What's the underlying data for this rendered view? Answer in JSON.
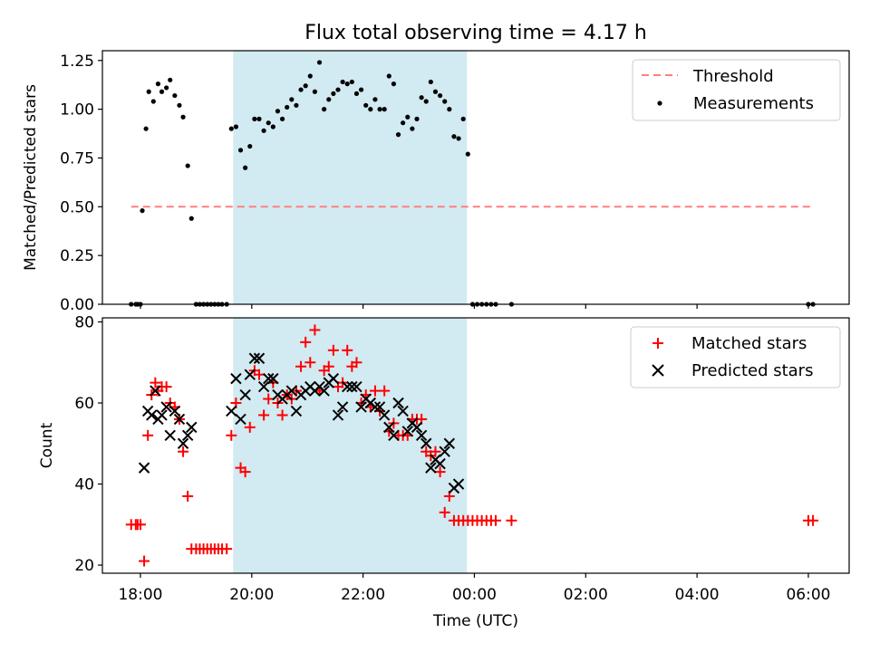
{
  "figure": {
    "title": "Flux total observing time = 4.17 h",
    "xlabel": "Time (UTC)"
  },
  "chart_data": [
    {
      "type": "scatter",
      "panel": "top",
      "ylabel": "Matched/Predicted stars",
      "xlim": [
        "17:19",
        "06:44"
      ],
      "ylim": [
        0,
        1.3
      ],
      "yticks": [
        0.0,
        0.25,
        0.5,
        0.75,
        1.0,
        1.25
      ],
      "ytick_labels": [
        "0.00",
        "0.25",
        "0.50",
        "0.75",
        "1.00",
        "1.25"
      ],
      "grid": false,
      "legend_position": "top-right",
      "shaded_region": {
        "x": [
          "19:40",
          "23:52"
        ],
        "color": "#add8e6"
      },
      "threshold": {
        "name": "Threshold",
        "y": 0.5,
        "x": [
          "17:50",
          "06:05"
        ],
        "color": "#ff7f7f",
        "style": "dashed"
      },
      "series": [
        {
          "name": "Measurements",
          "color": "#000000",
          "marker": "dot",
          "points": [
            [
              "17:50",
              0.0
            ],
            [
              "17:55",
              0.0
            ],
            [
              "17:57",
              0.0
            ],
            [
              "18:00",
              0.0
            ],
            [
              "18:02",
              0.48
            ],
            [
              "18:06",
              0.9
            ],
            [
              "18:09",
              1.09
            ],
            [
              "18:14",
              1.04
            ],
            [
              "18:19",
              1.13
            ],
            [
              "18:23",
              1.09
            ],
            [
              "18:28",
              1.11
            ],
            [
              "18:32",
              1.15
            ],
            [
              "18:37",
              1.07
            ],
            [
              "18:42",
              1.02
            ],
            [
              "18:46",
              0.96
            ],
            [
              "18:51",
              0.71
            ],
            [
              "18:55",
              0.44
            ],
            [
              "19:00",
              0.0
            ],
            [
              "19:04",
              0.0
            ],
            [
              "19:08",
              0.0
            ],
            [
              "19:12",
              0.0
            ],
            [
              "19:16",
              0.0
            ],
            [
              "19:20",
              0.0
            ],
            [
              "19:24",
              0.0
            ],
            [
              "19:28",
              0.0
            ],
            [
              "19:33",
              0.0
            ],
            [
              "19:38",
              0.9
            ],
            [
              "19:43",
              0.91
            ],
            [
              "19:48",
              0.79
            ],
            [
              "19:53",
              0.7
            ],
            [
              "19:58",
              0.81
            ],
            [
              "20:03",
              0.95
            ],
            [
              "20:08",
              0.95
            ],
            [
              "20:13",
              0.89
            ],
            [
              "20:18",
              0.93
            ],
            [
              "20:23",
              0.91
            ],
            [
              "20:28",
              0.99
            ],
            [
              "20:33",
              0.95
            ],
            [
              "20:38",
              1.01
            ],
            [
              "20:43",
              1.05
            ],
            [
              "20:48",
              1.02
            ],
            [
              "20:53",
              1.1
            ],
            [
              "20:58",
              1.12
            ],
            [
              "21:03",
              1.17
            ],
            [
              "21:08",
              1.09
            ],
            [
              "21:13",
              1.24
            ],
            [
              "21:18",
              1.0
            ],
            [
              "21:23",
              1.05
            ],
            [
              "21:28",
              1.08
            ],
            [
              "21:33",
              1.1
            ],
            [
              "21:38",
              1.14
            ],
            [
              "21:43",
              1.13
            ],
            [
              "21:48",
              1.14
            ],
            [
              "21:53",
              1.08
            ],
            [
              "21:58",
              1.1
            ],
            [
              "22:03",
              1.02
            ],
            [
              "22:08",
              1.0
            ],
            [
              "22:13",
              1.05
            ],
            [
              "22:18",
              1.0
            ],
            [
              "22:23",
              1.0
            ],
            [
              "22:28",
              1.17
            ],
            [
              "22:33",
              1.13
            ],
            [
              "22:38",
              0.87
            ],
            [
              "22:43",
              0.93
            ],
            [
              "22:48",
              0.96
            ],
            [
              "22:53",
              0.9
            ],
            [
              "22:58",
              0.95
            ],
            [
              "23:03",
              1.06
            ],
            [
              "23:08",
              1.04
            ],
            [
              "23:13",
              1.14
            ],
            [
              "23:18",
              1.09
            ],
            [
              "23:23",
              1.07
            ],
            [
              "23:28",
              1.04
            ],
            [
              "23:33",
              1.0
            ],
            [
              "23:38",
              0.86
            ],
            [
              "23:43",
              0.85
            ],
            [
              "23:48",
              0.95
            ],
            [
              "23:53",
              0.77
            ],
            [
              "23:58",
              0.0
            ],
            [
              "00:03",
              0.0
            ],
            [
              "00:08",
              0.0
            ],
            [
              "00:13",
              0.0
            ],
            [
              "00:18",
              0.0
            ],
            [
              "00:23",
              0.0
            ],
            [
              "00:40",
              0.0
            ],
            [
              "06:00",
              0.0
            ],
            [
              "06:05",
              0.0
            ]
          ]
        }
      ]
    },
    {
      "type": "scatter",
      "panel": "bottom",
      "ylabel": "Count",
      "xlabel": "Time (UTC)",
      "xlim": [
        "17:19",
        "06:44"
      ],
      "ylim": [
        18,
        81
      ],
      "yticks": [
        20,
        40,
        60,
        80
      ],
      "ytick_labels": [
        "20",
        "40",
        "60",
        "80"
      ],
      "xticks": [
        "18:00",
        "20:00",
        "22:00",
        "00:00",
        "02:00",
        "04:00",
        "06:00"
      ],
      "grid": false,
      "legend_position": "top-right",
      "shaded_region": {
        "x": [
          "19:40",
          "23:52"
        ],
        "color": "#add8e6"
      },
      "series": [
        {
          "name": "Matched stars",
          "color": "#ff0000",
          "marker": "plus",
          "points": [
            [
              "17:50",
              30
            ],
            [
              "17:55",
              30
            ],
            [
              "17:57",
              30
            ],
            [
              "18:00",
              30
            ],
            [
              "18:04",
              21
            ],
            [
              "18:08",
              52
            ],
            [
              "18:12",
              62
            ],
            [
              "18:16",
              65
            ],
            [
              "18:19",
              63
            ],
            [
              "18:23",
              64
            ],
            [
              "18:28",
              64
            ],
            [
              "18:32",
              60
            ],
            [
              "18:37",
              59
            ],
            [
              "18:42",
              56
            ],
            [
              "18:46",
              48
            ],
            [
              "18:51",
              37
            ],
            [
              "18:55",
              24
            ],
            [
              "19:00",
              24
            ],
            [
              "19:04",
              24
            ],
            [
              "19:08",
              24
            ],
            [
              "19:12",
              24
            ],
            [
              "19:16",
              24
            ],
            [
              "19:20",
              24
            ],
            [
              "19:24",
              24
            ],
            [
              "19:28",
              24
            ],
            [
              "19:33",
              24
            ],
            [
              "19:38",
              52
            ],
            [
              "19:43",
              60
            ],
            [
              "19:48",
              44
            ],
            [
              "19:53",
              43
            ],
            [
              "19:58",
              54
            ],
            [
              "20:03",
              68
            ],
            [
              "20:08",
              67
            ],
            [
              "20:13",
              57
            ],
            [
              "20:18",
              61
            ],
            [
              "20:23",
              65
            ],
            [
              "20:28",
              60
            ],
            [
              "20:33",
              57
            ],
            [
              "20:38",
              62
            ],
            [
              "20:43",
              61
            ],
            [
              "20:48",
              63
            ],
            [
              "20:53",
              69
            ],
            [
              "20:58",
              75
            ],
            [
              "21:03",
              70
            ],
            [
              "21:08",
              78
            ],
            [
              "21:13",
              63
            ],
            [
              "21:18",
              68
            ],
            [
              "21:23",
              69
            ],
            [
              "21:28",
              73
            ],
            [
              "21:33",
              64
            ],
            [
              "21:38",
              65
            ],
            [
              "21:43",
              73
            ],
            [
              "21:48",
              69
            ],
            [
              "21:53",
              70
            ],
            [
              "21:58",
              60
            ],
            [
              "22:03",
              62
            ],
            [
              "22:08",
              59
            ],
            [
              "22:13",
              63
            ],
            [
              "22:18",
              58
            ],
            [
              "22:23",
              63
            ],
            [
              "22:28",
              53
            ],
            [
              "22:33",
              55
            ],
            [
              "22:38",
              52
            ],
            [
              "22:43",
              52
            ],
            [
              "22:48",
              52
            ],
            [
              "22:53",
              56
            ],
            [
              "22:58",
              56
            ],
            [
              "23:03",
              56
            ],
            [
              "23:08",
              48
            ],
            [
              "23:13",
              47
            ],
            [
              "23:18",
              48
            ],
            [
              "23:23",
              43
            ],
            [
              "23:28",
              33
            ],
            [
              "23:33",
              37
            ],
            [
              "23:38",
              31
            ],
            [
              "23:43",
              31
            ],
            [
              "23:48",
              31
            ],
            [
              "23:53",
              31
            ],
            [
              "23:58",
              31
            ],
            [
              "00:03",
              31
            ],
            [
              "00:08",
              31
            ],
            [
              "00:13",
              31
            ],
            [
              "00:18",
              31
            ],
            [
              "00:23",
              31
            ],
            [
              "00:40",
              31
            ],
            [
              "06:00",
              31
            ],
            [
              "06:05",
              31
            ]
          ]
        },
        {
          "name": "Predicted stars",
          "color": "#000000",
          "marker": "x",
          "points": [
            [
              "18:04",
              44
            ],
            [
              "18:08",
              58
            ],
            [
              "18:12",
              57
            ],
            [
              "18:16",
              63
            ],
            [
              "18:19",
              56
            ],
            [
              "18:23",
              57
            ],
            [
              "18:28",
              59
            ],
            [
              "18:32",
              52
            ],
            [
              "18:37",
              58
            ],
            [
              "18:42",
              56
            ],
            [
              "18:46",
              50
            ],
            [
              "18:51",
              52
            ],
            [
              "18:55",
              54
            ],
            [
              "19:38",
              58
            ],
            [
              "19:43",
              66
            ],
            [
              "19:48",
              56
            ],
            [
              "19:53",
              62
            ],
            [
              "19:58",
              67
            ],
            [
              "20:03",
              71
            ],
            [
              "20:08",
              71
            ],
            [
              "20:13",
              64
            ],
            [
              "20:18",
              66
            ],
            [
              "20:23",
              66
            ],
            [
              "20:28",
              62
            ],
            [
              "20:33",
              61
            ],
            [
              "20:38",
              62
            ],
            [
              "20:43",
              63
            ],
            [
              "20:48",
              58
            ],
            [
              "20:53",
              62
            ],
            [
              "20:58",
              63
            ],
            [
              "21:03",
              64
            ],
            [
              "21:08",
              63
            ],
            [
              "21:13",
              64
            ],
            [
              "21:18",
              63
            ],
            [
              "21:23",
              65
            ],
            [
              "21:28",
              66
            ],
            [
              "21:33",
              57
            ],
            [
              "21:38",
              59
            ],
            [
              "21:43",
              64
            ],
            [
              "21:48",
              64
            ],
            [
              "21:53",
              64
            ],
            [
              "21:58",
              59
            ],
            [
              "22:03",
              61
            ],
            [
              "22:08",
              60
            ],
            [
              "22:13",
              59
            ],
            [
              "22:18",
              59
            ],
            [
              "22:23",
              57
            ],
            [
              "22:28",
              54
            ],
            [
              "22:33",
              52
            ],
            [
              "22:38",
              60
            ],
            [
              "22:43",
              58
            ],
            [
              "22:48",
              53
            ],
            [
              "22:53",
              55
            ],
            [
              "22:58",
              54
            ],
            [
              "23:03",
              52
            ],
            [
              "23:08",
              50
            ],
            [
              "23:13",
              44
            ],
            [
              "23:18",
              46
            ],
            [
              "23:23",
              45
            ],
            [
              "23:28",
              48
            ],
            [
              "23:33",
              50
            ],
            [
              "23:38",
              39
            ],
            [
              "23:43",
              40
            ]
          ]
        }
      ]
    }
  ]
}
